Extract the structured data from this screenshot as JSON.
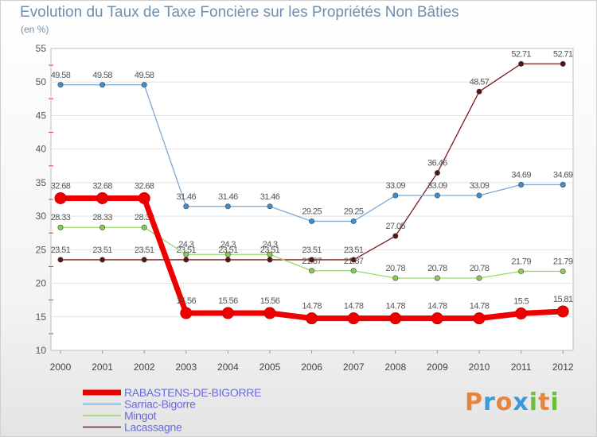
{
  "title": "Evolution du Taux de Taxe Foncière sur les Propriétés Non Bâties",
  "unit": "(en %)",
  "logo": {
    "letters": [
      "P",
      "r",
      "o",
      "x",
      "i",
      "t",
      "i"
    ],
    "colors": [
      "#e8833a",
      "#3a9ad9",
      "#e8833a",
      "#3a9ad9",
      "#6cbf3b",
      "#e8833a",
      "#6cbf3b"
    ]
  },
  "chart_data": {
    "type": "line",
    "title": "Evolution du Taux de Taxe Foncière sur les Propriétés Non Bâties",
    "ylabel": "(en %)",
    "xlabel": "",
    "ylim": [
      10,
      55
    ],
    "yticks": [
      "10",
      "15",
      "20",
      "25",
      "30",
      "35",
      "40",
      "45",
      "50",
      "55"
    ],
    "categories": [
      "2000",
      "2001",
      "2002",
      "2003",
      "2004",
      "2005",
      "2006",
      "2007",
      "2008",
      "2009",
      "2010",
      "2011",
      "2012"
    ],
    "series": [
      {
        "name": "Lacassagne",
        "color": "#7a1a1a",
        "marker": "#5a1212",
        "values": [
          23.51,
          23.51,
          23.51,
          23.51,
          23.51,
          23.51,
          23.51,
          23.51,
          27.05,
          36.46,
          48.57,
          52.71,
          52.71
        ],
        "labels": [
          "23.51",
          "23.51",
          "23.51",
          "23.51",
          "23.51",
          "23.51",
          "23.51",
          "23.51",
          "27.05",
          "36.46",
          "48.57",
          "52.71",
          "52.71"
        ]
      },
      {
        "name": "Mingot",
        "color": "#99d86b",
        "marker": "#88cc55",
        "values": [
          28.33,
          28.33,
          28.33,
          24.3,
          24.3,
          24.3,
          21.87,
          21.87,
          20.78,
          20.78,
          20.78,
          21.79,
          21.79
        ],
        "labels": [
          "28.33",
          "28.33",
          "28.33",
          "24.3",
          "24.3",
          "24.3",
          "21.87",
          "21.87",
          "20.78",
          "20.78",
          "20.78",
          "21.79",
          "21.79"
        ]
      },
      {
        "name": "Sarriac-Bigorre",
        "color": "#7ba9d6",
        "marker": "#3f8ed0",
        "values": [
          49.58,
          49.58,
          49.58,
          31.46,
          31.46,
          31.46,
          29.25,
          29.25,
          33.09,
          33.09,
          33.09,
          34.69,
          34.69
        ],
        "labels": [
          "49.58",
          "49.58",
          "49.58",
          "31.46",
          "31.46",
          "31.46",
          "29.25",
          "29.25",
          "33.09",
          "33.09",
          "33.09",
          "34.69",
          "34.69"
        ]
      },
      {
        "name": "RABASTENS-DE-BIGORRE",
        "color": "#ee0000",
        "marker": "#ee0000",
        "values": [
          32.68,
          32.68,
          32.68,
          15.56,
          15.56,
          15.56,
          14.78,
          14.78,
          14.78,
          14.78,
          14.78,
          15.5,
          15.81
        ],
        "labels": [
          "32.68",
          "32.68",
          "32.68",
          "15.56",
          "15.56",
          "15.56",
          "14.78",
          "14.78",
          "14.78",
          "14.78",
          "14.78",
          "15.5",
          "15.81"
        ]
      }
    ],
    "legend": [
      "RABASTENS-DE-BIGORRE",
      "Sarriac-Bigorre",
      "Mingot",
      "Lacassagne"
    ],
    "legend_position": "bottom-left"
  }
}
